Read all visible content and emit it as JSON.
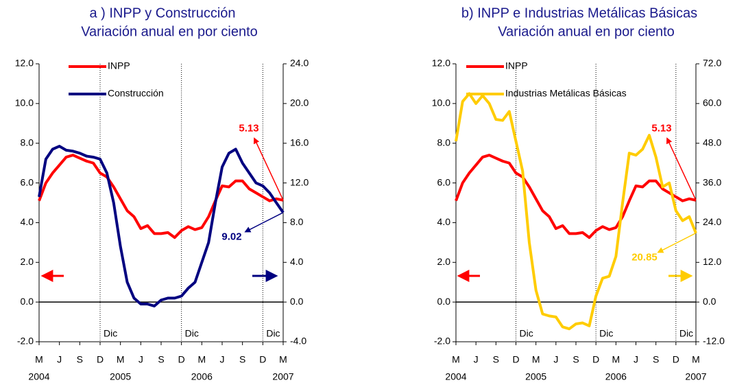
{
  "chart_data": [
    {
      "type": "line",
      "title": "a ) INPP y Construcción",
      "subtitle": "Variación anual en por ciento",
      "categories": [
        "M",
        null,
        null,
        "J",
        null,
        null,
        "S",
        null,
        null,
        "D",
        null,
        null,
        "M",
        null,
        null,
        "J",
        null,
        null,
        "S",
        null,
        null,
        "D",
        null,
        null,
        "M",
        null,
        null,
        "J",
        null,
        null,
        "S",
        null,
        null,
        "D",
        null,
        null,
        "M"
      ],
      "year_labels": [
        "2004",
        null,
        null,
        null,
        null,
        null,
        null,
        null,
        null,
        null,
        null,
        null,
        "2005",
        null,
        null,
        null,
        null,
        null,
        null,
        null,
        null,
        null,
        null,
        null,
        "2006",
        null,
        null,
        null,
        null,
        null,
        null,
        null,
        null,
        null,
        null,
        null,
        "2007"
      ],
      "vlines": [
        {
          "x": 9,
          "label": "Dic"
        },
        {
          "x": 21,
          "label": "Dic"
        },
        {
          "x": 33,
          "label": "Dic"
        }
      ],
      "ylim": [
        -2,
        12
      ],
      "yticks": [
        {
          "value": -2,
          "label": "-2.0"
        },
        {
          "value": 0,
          "label": "0.0"
        },
        {
          "value": 2,
          "label": "2.0"
        },
        {
          "value": 4,
          "label": "4.0"
        },
        {
          "value": 6,
          "label": "6.0"
        },
        {
          "value": 8,
          "label": "8.0"
        },
        {
          "value": 10,
          "label": "10.0"
        },
        {
          "value": 12,
          "label": "12.0"
        }
      ],
      "y2lim": [
        -4,
        24
      ],
      "y2ticks": [
        {
          "value": -4,
          "label": "-4.0"
        },
        {
          "value": 0,
          "label": "0.0"
        },
        {
          "value": 4,
          "label": "4.0"
        },
        {
          "value": 8,
          "label": "8.0"
        },
        {
          "value": 12,
          "label": "12.0"
        },
        {
          "value": 16,
          "label": "16.0"
        },
        {
          "value": 20,
          "label": "20.0"
        },
        {
          "value": 24,
          "label": "24.0"
        }
      ],
      "series": [
        {
          "name": "INPP",
          "color": "#ff0000",
          "values": [
            5.1,
            6.0,
            6.5,
            6.9,
            7.3,
            7.4,
            7.25,
            7.1,
            7.0,
            6.5,
            6.3,
            5.8,
            5.2,
            4.6,
            4.3,
            3.7,
            3.85,
            3.45,
            3.45,
            3.5,
            3.25,
            3.6,
            3.8,
            3.65,
            3.75,
            4.3,
            5.1,
            5.85,
            5.8,
            6.1,
            6.1,
            5.7,
            5.5,
            5.3,
            5.1,
            5.2,
            5.13
          ],
          "value_labels": [
            null,
            null,
            null,
            null,
            null,
            null,
            null,
            null,
            null,
            null,
            null,
            null,
            null,
            null,
            null,
            null,
            null,
            null,
            null,
            null,
            null,
            null,
            null,
            null,
            null,
            null,
            null,
            null,
            null,
            null,
            null,
            null,
            null,
            null,
            null,
            null,
            "5.13"
          ]
        },
        {
          "name": "Construcción",
          "color": "#000080",
          "axis": "y2",
          "values": [
            10.6,
            14.4,
            15.4,
            15.7,
            15.3,
            15.2,
            15.0,
            14.7,
            14.6,
            14.4,
            13.0,
            10.0,
            5.6,
            2.0,
            0.4,
            -0.2,
            -0.2,
            -0.4,
            0.2,
            0.4,
            0.4,
            0.6,
            1.4,
            2.0,
            4.0,
            6.0,
            10.0,
            13.6,
            15.0,
            15.4,
            14.0,
            13.0,
            12.0,
            11.7,
            11.0,
            10.0,
            9.02
          ],
          "value_labels": [
            null,
            null,
            null,
            null,
            null,
            null,
            null,
            null,
            null,
            null,
            null,
            null,
            null,
            null,
            null,
            null,
            null,
            null,
            null,
            null,
            null,
            null,
            null,
            null,
            null,
            null,
            null,
            null,
            null,
            null,
            null,
            null,
            null,
            null,
            null,
            null,
            "9.02"
          ]
        }
      ]
    },
    {
      "type": "line",
      "title": "b) INPP e Industrias Metálicas Básicas",
      "subtitle": "Variación anual en por ciento",
      "categories": [
        "M",
        null,
        null,
        "J",
        null,
        null,
        "S",
        null,
        null,
        "D",
        null,
        null,
        "M",
        null,
        null,
        "J",
        null,
        null,
        "S",
        null,
        null,
        "D",
        null,
        null,
        "M",
        null,
        null,
        "J",
        null,
        null,
        "S",
        null,
        null,
        "D",
        null,
        null,
        "M"
      ],
      "year_labels": [
        "2004",
        null,
        null,
        null,
        null,
        null,
        null,
        null,
        null,
        null,
        null,
        null,
        "2005",
        null,
        null,
        null,
        null,
        null,
        null,
        null,
        null,
        null,
        null,
        null,
        "2006",
        null,
        null,
        null,
        null,
        null,
        null,
        null,
        null,
        null,
        null,
        null,
        "2007"
      ],
      "vlines": [
        {
          "x": 9,
          "label": "Dic"
        },
        {
          "x": 21,
          "label": "Dic"
        },
        {
          "x": 33,
          "label": "Dic"
        }
      ],
      "ylim": [
        -2,
        12
      ],
      "yticks": [
        {
          "value": -2,
          "label": "-2.0"
        },
        {
          "value": 0,
          "label": "0.0"
        },
        {
          "value": 2,
          "label": "2.0"
        },
        {
          "value": 4,
          "label": "4.0"
        },
        {
          "value": 6,
          "label": "6.0"
        },
        {
          "value": 8,
          "label": "8.0"
        },
        {
          "value": 10,
          "label": "10.0"
        },
        {
          "value": 12,
          "label": "12.0"
        }
      ],
      "y2lim": [
        -12,
        72
      ],
      "y2ticks": [
        {
          "value": -12,
          "label": "-12.0"
        },
        {
          "value": 0,
          "label": "0.0"
        },
        {
          "value": 12,
          "label": "12.0"
        },
        {
          "value": 24,
          "label": "24.0"
        },
        {
          "value": 36,
          "label": "36.0"
        },
        {
          "value": 48,
          "label": "48.0"
        },
        {
          "value": 60,
          "label": "60.0"
        },
        {
          "value": 72,
          "label": "72.0"
        }
      ],
      "series": [
        {
          "name": "INPP",
          "color": "#ff0000",
          "values": [
            5.1,
            6.0,
            6.5,
            6.9,
            7.3,
            7.4,
            7.25,
            7.1,
            7.0,
            6.5,
            6.3,
            5.8,
            5.2,
            4.6,
            4.3,
            3.7,
            3.85,
            3.45,
            3.45,
            3.5,
            3.25,
            3.6,
            3.8,
            3.65,
            3.75,
            4.3,
            5.1,
            5.85,
            5.8,
            6.1,
            6.1,
            5.7,
            5.5,
            5.3,
            5.1,
            5.2,
            5.13
          ],
          "value_labels": [
            null,
            null,
            null,
            null,
            null,
            null,
            null,
            null,
            null,
            null,
            null,
            null,
            null,
            null,
            null,
            null,
            null,
            null,
            null,
            null,
            null,
            null,
            null,
            null,
            null,
            null,
            null,
            null,
            null,
            null,
            null,
            null,
            null,
            null,
            null,
            null,
            "5.13"
          ]
        },
        {
          "name": "Industrias Metálicas Básicas",
          "color": "#ffcc00",
          "axis": "y2",
          "values": [
            48.6,
            60.6,
            63,
            60,
            62.4,
            60,
            55.2,
            54.9,
            57.6,
            48.6,
            39.6,
            18,
            3.6,
            -3.6,
            -4.2,
            -4.5,
            -7.5,
            -8.1,
            -6.6,
            -6.3,
            -7.2,
            1.8,
            7.2,
            7.8,
            13.8,
            30,
            45,
            44.4,
            46.2,
            50.4,
            43.8,
            34.8,
            36,
            27.6,
            24.6,
            25.8,
            20.85
          ],
          "value_labels": [
            null,
            null,
            null,
            null,
            null,
            null,
            null,
            null,
            null,
            null,
            null,
            null,
            null,
            null,
            null,
            null,
            null,
            null,
            null,
            null,
            null,
            null,
            null,
            null,
            null,
            null,
            null,
            null,
            null,
            null,
            null,
            null,
            null,
            null,
            null,
            null,
            "20.85"
          ]
        }
      ]
    }
  ]
}
